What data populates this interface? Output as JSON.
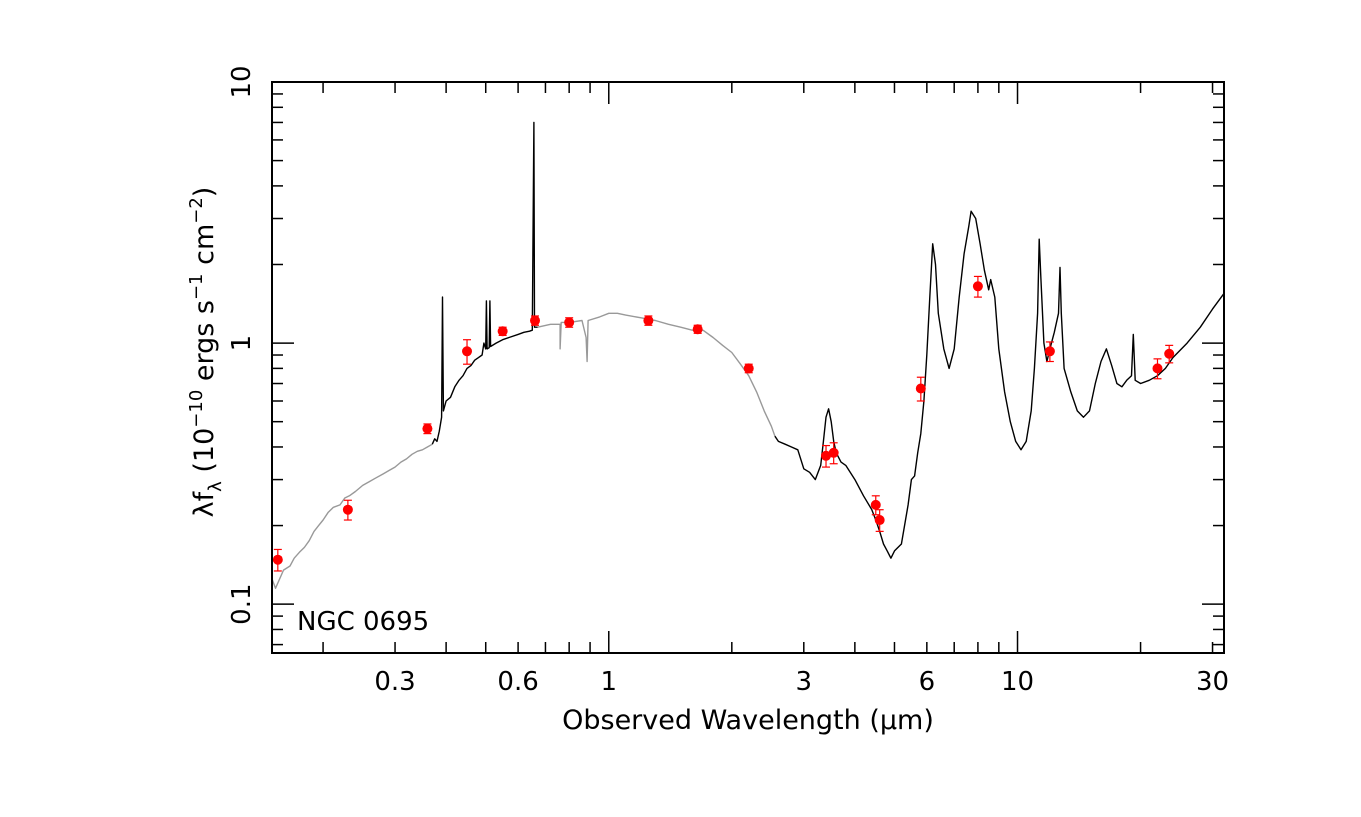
{
  "chart_data": {
    "type": "scatter",
    "annotation": "NGC 0695",
    "xlabel": "Observed Wavelength (μm)",
    "ylabel": {
      "prefix": "λf",
      "sub": "λ",
      "open": " (10",
      "exp1": "−10",
      "mid": " ergs s",
      "exp2": "−1",
      "mid2": " cm",
      "exp3": "−2",
      "close": ")"
    },
    "x_scale": "log",
    "y_scale": "log",
    "xlim": [
      0.15,
      32
    ],
    "ylim": [
      0.065,
      10
    ],
    "x_tick_labels": [
      {
        "value": 0.3,
        "label": "0.3"
      },
      {
        "value": 0.6,
        "label": "0.6"
      },
      {
        "value": 1,
        "label": "1"
      },
      {
        "value": 3,
        "label": "3"
      },
      {
        "value": 6,
        "label": "6"
      },
      {
        "value": 10,
        "label": "10"
      },
      {
        "value": 30,
        "label": "30"
      }
    ],
    "y_tick_labels": [
      {
        "value": 0.1,
        "label": "0.1"
      },
      {
        "value": 1,
        "label": "1"
      },
      {
        "value": 10,
        "label": "10"
      }
    ],
    "series": [
      {
        "kind": "model-template",
        "color": "#999999",
        "points": [
          [
            0.15,
            0.125
          ],
          [
            0.153,
            0.115
          ],
          [
            0.16,
            0.135
          ],
          [
            0.166,
            0.14
          ],
          [
            0.17,
            0.15
          ],
          [
            0.175,
            0.158
          ],
          [
            0.18,
            0.165
          ],
          [
            0.185,
            0.175
          ],
          [
            0.19,
            0.19
          ],
          [
            0.195,
            0.2
          ],
          [
            0.2,
            0.21
          ],
          [
            0.206,
            0.225
          ],
          [
            0.212,
            0.235
          ],
          [
            0.22,
            0.24
          ],
          [
            0.226,
            0.255
          ],
          [
            0.232,
            0.26
          ],
          [
            0.24,
            0.27
          ],
          [
            0.25,
            0.285
          ],
          [
            0.26,
            0.295
          ],
          [
            0.27,
            0.305
          ],
          [
            0.28,
            0.315
          ],
          [
            0.29,
            0.325
          ],
          [
            0.3,
            0.335
          ],
          [
            0.31,
            0.35
          ],
          [
            0.32,
            0.36
          ],
          [
            0.33,
            0.375
          ],
          [
            0.34,
            0.385
          ],
          [
            0.35,
            0.39
          ],
          [
            0.36,
            0.4
          ],
          [
            0.37,
            0.41
          ]
        ]
      },
      {
        "kind": "optical-spectrum",
        "color": "#000000",
        "points": [
          [
            0.37,
            0.41
          ],
          [
            0.375,
            0.43
          ],
          [
            0.38,
            0.42
          ],
          [
            0.385,
            0.46
          ],
          [
            0.39,
            0.52
          ],
          [
            0.392,
            1.5
          ],
          [
            0.394,
            0.55
          ],
          [
            0.4,
            0.6
          ],
          [
            0.41,
            0.62
          ],
          [
            0.42,
            0.68
          ],
          [
            0.43,
            0.72
          ],
          [
            0.44,
            0.75
          ],
          [
            0.45,
            0.8
          ],
          [
            0.46,
            0.82
          ],
          [
            0.47,
            0.86
          ],
          [
            0.48,
            0.88
          ],
          [
            0.49,
            0.9
          ],
          [
            0.495,
            1.0
          ],
          [
            0.5,
            0.95
          ],
          [
            0.502,
            1.45
          ],
          [
            0.504,
            0.95
          ],
          [
            0.51,
            0.96
          ],
          [
            0.512,
            1.45
          ],
          [
            0.514,
            0.97
          ],
          [
            0.53,
            1.0
          ],
          [
            0.55,
            1.03
          ],
          [
            0.57,
            1.05
          ],
          [
            0.6,
            1.08
          ],
          [
            0.62,
            1.1
          ],
          [
            0.64,
            1.11
          ],
          [
            0.65,
            1.12
          ],
          [
            0.656,
            7.0
          ],
          [
            0.658,
            1.15
          ],
          [
            0.67,
            1.15
          ]
        ]
      },
      {
        "kind": "model-template",
        "color": "#999999",
        "points": [
          [
            0.67,
            1.15
          ],
          [
            0.72,
            1.18
          ],
          [
            0.76,
            1.18
          ],
          [
            0.76,
            0.95
          ],
          [
            0.765,
            1.2
          ],
          [
            0.8,
            1.2
          ],
          [
            0.86,
            1.22
          ],
          [
            0.88,
            1.05
          ],
          [
            0.885,
            0.85
          ],
          [
            0.89,
            1.22
          ],
          [
            0.95,
            1.26
          ],
          [
            1.0,
            1.3
          ],
          [
            1.05,
            1.3
          ],
          [
            1.1,
            1.28
          ],
          [
            1.2,
            1.25
          ],
          [
            1.3,
            1.22
          ],
          [
            1.4,
            1.18
          ],
          [
            1.5,
            1.15
          ],
          [
            1.6,
            1.12
          ],
          [
            1.7,
            1.12
          ],
          [
            1.8,
            1.05
          ],
          [
            1.9,
            0.98
          ],
          [
            2.0,
            0.92
          ],
          [
            2.1,
            0.83
          ],
          [
            2.2,
            0.75
          ],
          [
            2.3,
            0.65
          ],
          [
            2.4,
            0.55
          ],
          [
            2.5,
            0.48
          ],
          [
            2.55,
            0.44
          ]
        ]
      },
      {
        "kind": "ir-spectrum",
        "color": "#000000",
        "points": [
          [
            2.55,
            0.44
          ],
          [
            2.6,
            0.42
          ],
          [
            2.7,
            0.41
          ],
          [
            2.8,
            0.4
          ],
          [
            2.9,
            0.39
          ],
          [
            3.0,
            0.33
          ],
          [
            3.1,
            0.32
          ],
          [
            3.2,
            0.3
          ],
          [
            3.3,
            0.34
          ],
          [
            3.35,
            0.42
          ],
          [
            3.4,
            0.52
          ],
          [
            3.45,
            0.56
          ],
          [
            3.5,
            0.5
          ],
          [
            3.55,
            0.42
          ],
          [
            3.6,
            0.38
          ],
          [
            3.7,
            0.35
          ],
          [
            3.8,
            0.34
          ],
          [
            4.0,
            0.3
          ],
          [
            4.2,
            0.26
          ],
          [
            4.4,
            0.23
          ],
          [
            4.5,
            0.21
          ],
          [
            4.6,
            0.19
          ],
          [
            4.7,
            0.17
          ],
          [
            4.8,
            0.16
          ],
          [
            4.9,
            0.15
          ],
          [
            5.0,
            0.16
          ],
          [
            5.2,
            0.17
          ],
          [
            5.4,
            0.24
          ],
          [
            5.5,
            0.3
          ],
          [
            5.6,
            0.31
          ],
          [
            5.7,
            0.38
          ],
          [
            5.8,
            0.45
          ],
          [
            5.9,
            0.6
          ],
          [
            6.0,
            0.9
          ],
          [
            6.1,
            1.5
          ],
          [
            6.2,
            2.4
          ],
          [
            6.3,
            2.0
          ],
          [
            6.4,
            1.3
          ],
          [
            6.6,
            0.95
          ],
          [
            6.8,
            0.8
          ],
          [
            7.0,
            0.95
          ],
          [
            7.2,
            1.5
          ],
          [
            7.4,
            2.2
          ],
          [
            7.6,
            2.8
          ],
          [
            7.7,
            3.2
          ],
          [
            7.9,
            3.0
          ],
          [
            8.1,
            2.4
          ],
          [
            8.3,
            1.9
          ],
          [
            8.5,
            1.6
          ],
          [
            8.6,
            1.75
          ],
          [
            8.8,
            1.5
          ],
          [
            9.0,
            0.95
          ],
          [
            9.3,
            0.65
          ],
          [
            9.6,
            0.5
          ],
          [
            9.9,
            0.42
          ],
          [
            10.2,
            0.39
          ],
          [
            10.5,
            0.42
          ],
          [
            10.8,
            0.55
          ],
          [
            11.0,
            0.8
          ],
          [
            11.2,
            1.3
          ],
          [
            11.3,
            2.5
          ],
          [
            11.4,
            1.8
          ],
          [
            11.6,
            1.0
          ],
          [
            11.8,
            0.85
          ],
          [
            12.0,
            0.95
          ],
          [
            12.3,
            1.1
          ],
          [
            12.6,
            1.3
          ],
          [
            12.7,
            1.95
          ],
          [
            12.8,
            1.3
          ],
          [
            13.0,
            0.8
          ],
          [
            13.5,
            0.65
          ],
          [
            14.0,
            0.55
          ],
          [
            14.5,
            0.52
          ],
          [
            15.0,
            0.55
          ],
          [
            15.5,
            0.7
          ],
          [
            16.0,
            0.85
          ],
          [
            16.5,
            0.95
          ],
          [
            17.0,
            0.82
          ],
          [
            17.5,
            0.7
          ],
          [
            18.0,
            0.68
          ],
          [
            18.5,
            0.72
          ],
          [
            19.0,
            0.75
          ],
          [
            19.2,
            1.08
          ],
          [
            19.4,
            0.72
          ],
          [
            20.0,
            0.7
          ],
          [
            21.0,
            0.72
          ],
          [
            22.0,
            0.75
          ],
          [
            23.0,
            0.8
          ],
          [
            24.0,
            0.88
          ],
          [
            26.0,
            1.0
          ],
          [
            28.0,
            1.15
          ],
          [
            30.0,
            1.35
          ],
          [
            32.0,
            1.55
          ]
        ]
      },
      {
        "kind": "photometry",
        "color": "#ff0000",
        "points": [
          {
            "x": 0.155,
            "y": 0.148,
            "err": 0.014
          },
          {
            "x": 0.23,
            "y": 0.23,
            "err": 0.02
          },
          {
            "x": 0.36,
            "y": 0.47,
            "err": 0.02
          },
          {
            "x": 0.45,
            "y": 0.93,
            "err": 0.1
          },
          {
            "x": 0.55,
            "y": 1.11,
            "err": 0.04
          },
          {
            "x": 0.66,
            "y": 1.22,
            "err": 0.05
          },
          {
            "x": 0.8,
            "y": 1.2,
            "err": 0.05
          },
          {
            "x": 1.25,
            "y": 1.22,
            "err": 0.05
          },
          {
            "x": 1.65,
            "y": 1.13,
            "err": 0.04
          },
          {
            "x": 2.2,
            "y": 0.8,
            "err": 0.03
          },
          {
            "x": 3.4,
            "y": 0.37,
            "err": 0.035
          },
          {
            "x": 3.55,
            "y": 0.38,
            "err": 0.035
          },
          {
            "x": 4.5,
            "y": 0.24,
            "err": 0.02
          },
          {
            "x": 4.6,
            "y": 0.21,
            "err": 0.02
          },
          {
            "x": 5.8,
            "y": 0.67,
            "err": 0.07
          },
          {
            "x": 8.0,
            "y": 1.65,
            "err": 0.15
          },
          {
            "x": 12.0,
            "y": 0.93,
            "err": 0.08
          },
          {
            "x": 22.0,
            "y": 0.8,
            "err": 0.07
          },
          {
            "x": 23.5,
            "y": 0.91,
            "err": 0.07
          }
        ]
      }
    ]
  }
}
